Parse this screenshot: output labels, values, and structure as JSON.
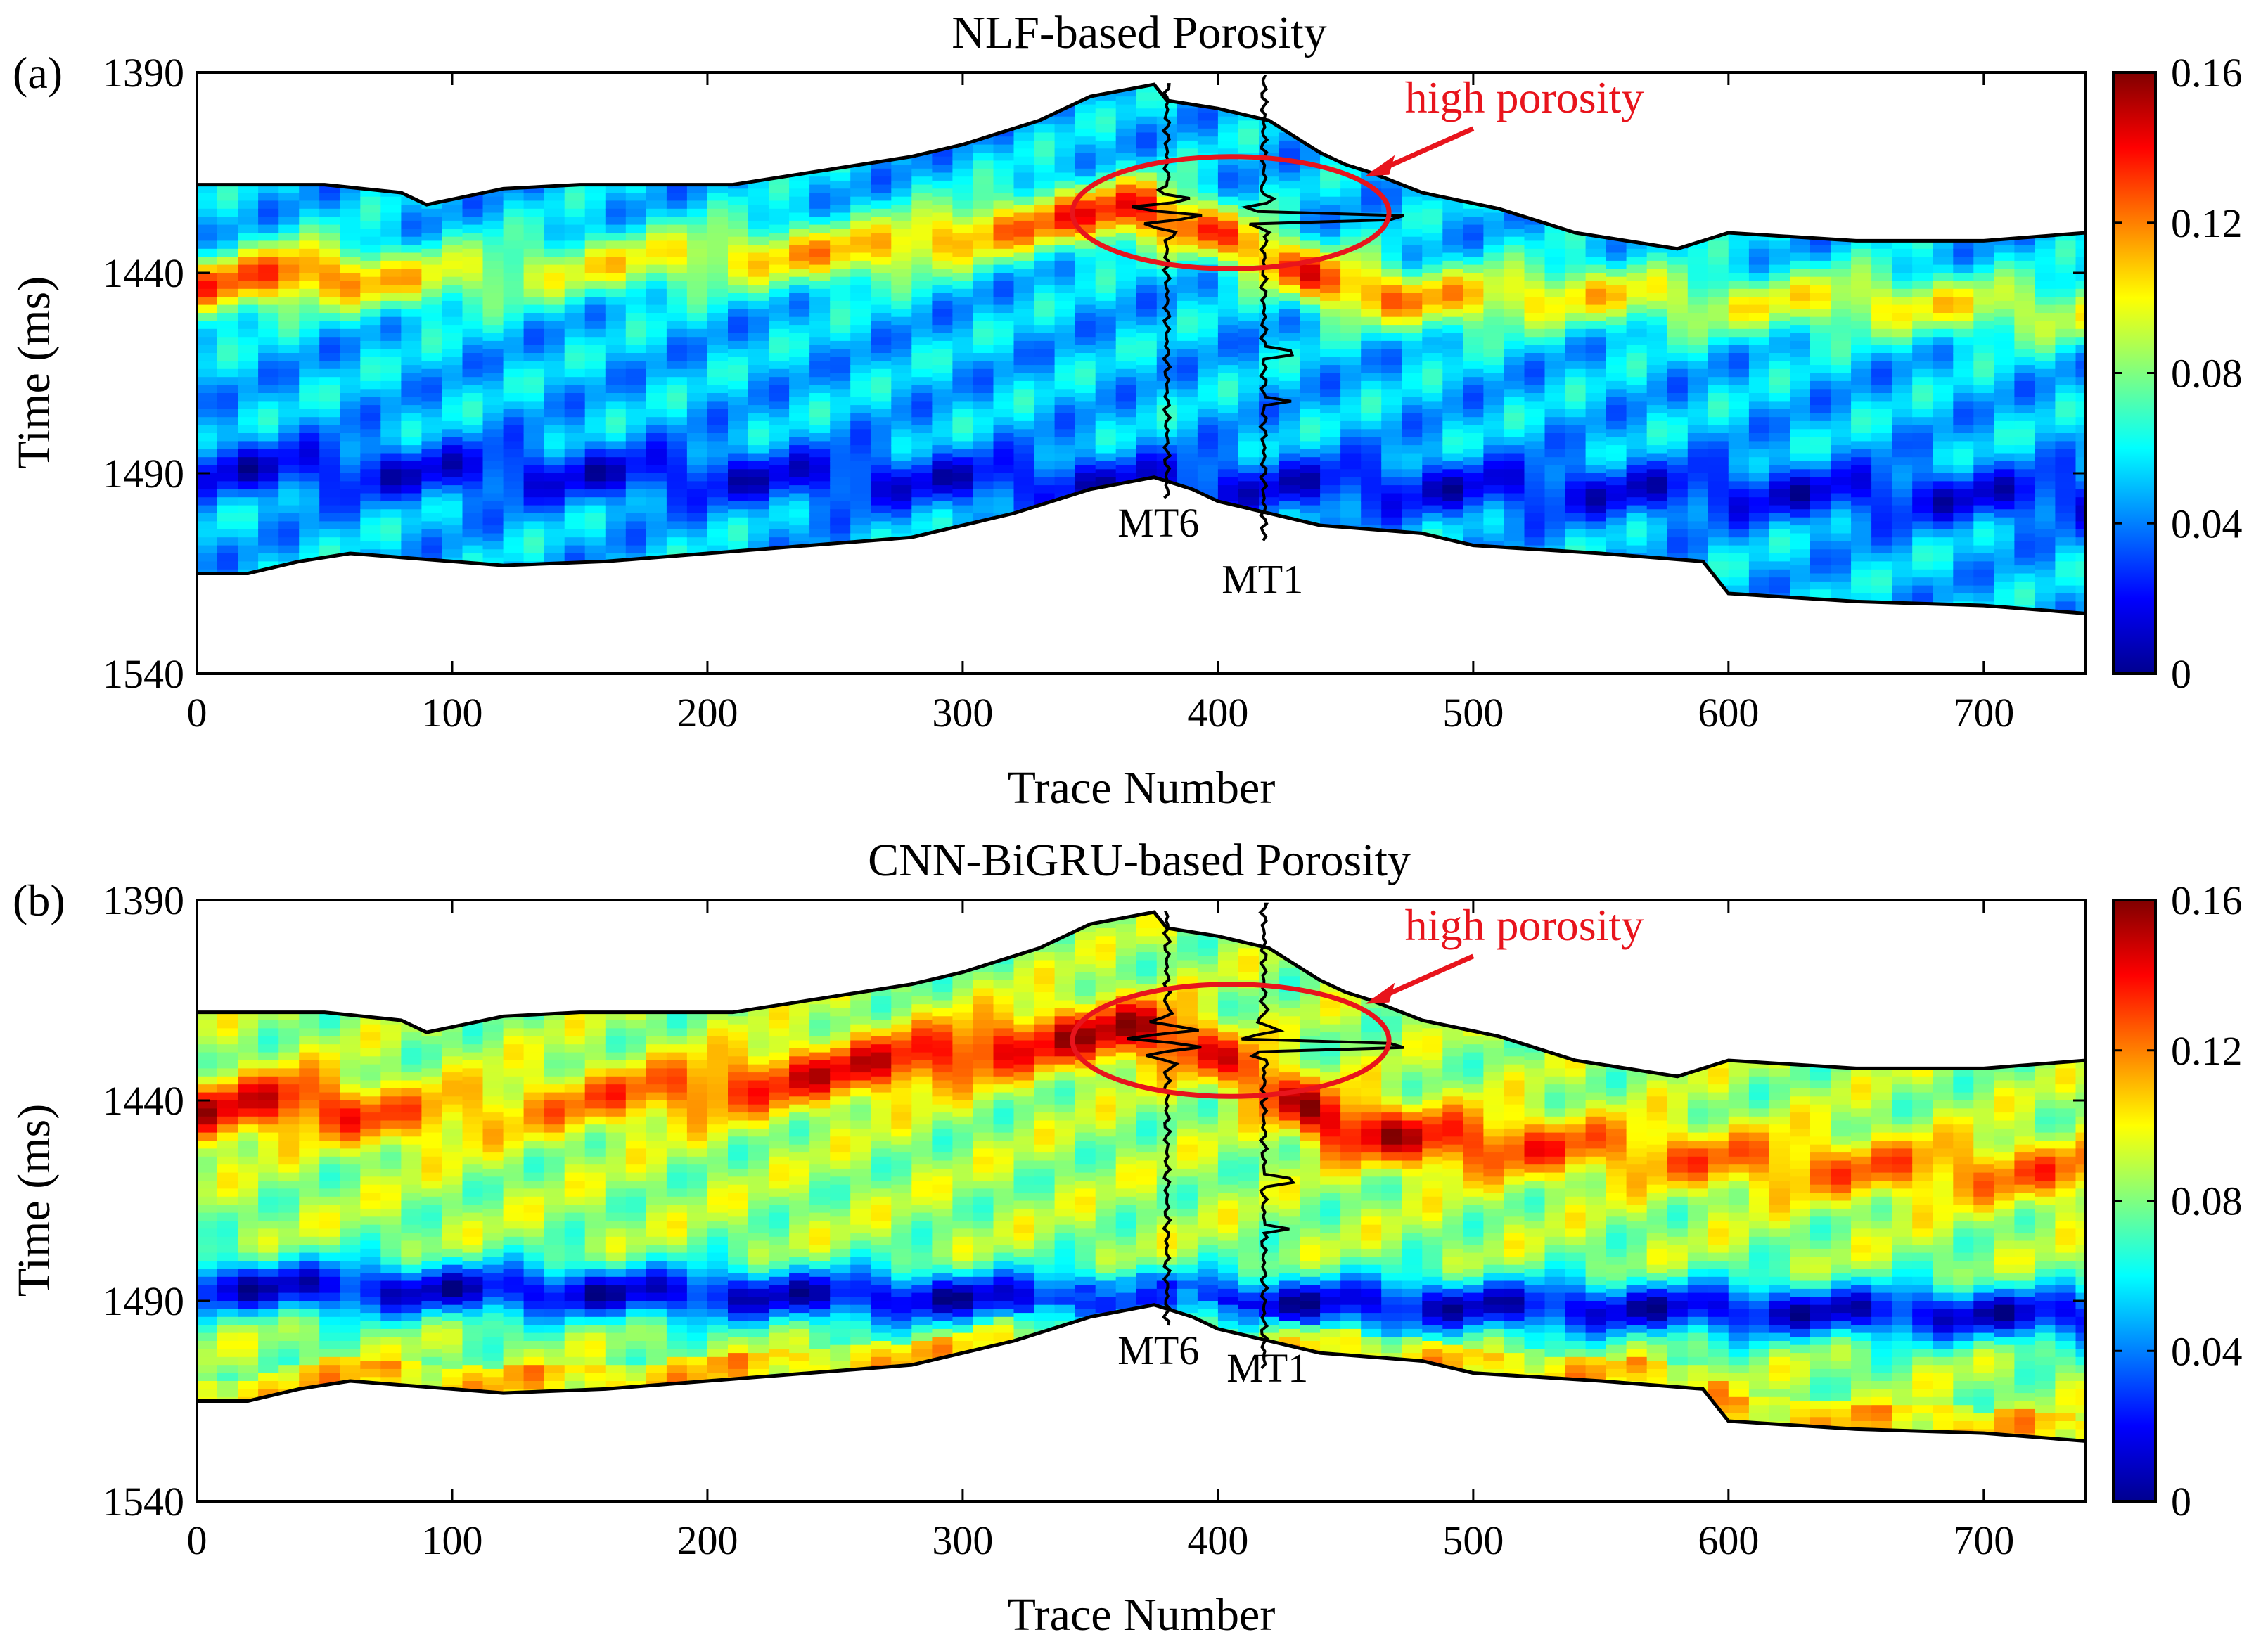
{
  "chart_data": [
    {
      "type": "heatmap",
      "panel_label": "(a)",
      "title": "NLF-based Porosity",
      "xlabel": "Trace Number",
      "ylabel": "Time (ms)",
      "xlim": [
        0,
        740
      ],
      "ylim": [
        1390,
        1540
      ],
      "y_reversed": true,
      "x_ticks": [
        "0",
        "100",
        "200",
        "300",
        "400",
        "500",
        "600",
        "700"
      ],
      "y_ticks": [
        "1390",
        "1440",
        "1490",
        "1540"
      ],
      "colorbar": {
        "min": 0,
        "max": 0.16,
        "ticks": [
          "0",
          "0.04",
          "0.08",
          "0.12",
          "0.16"
        ],
        "colormap": "jet"
      },
      "horizon_top": {
        "x": [
          0,
          10,
          50,
          80,
          90,
          120,
          150,
          210,
          230,
          260,
          280,
          300,
          330,
          350,
          375,
          380,
          390,
          400,
          420,
          430,
          440,
          450,
          460,
          480,
          510,
          540,
          580,
          600,
          650,
          700,
          740
        ],
        "t": [
          1418,
          1418,
          1418,
          1420,
          1423,
          1419,
          1418,
          1418,
          1416,
          1413,
          1411,
          1408,
          1402,
          1396,
          1393,
          1397,
          1398,
          1399,
          1402,
          1406,
          1410,
          1413,
          1415,
          1420,
          1424,
          1430,
          1434,
          1430,
          1432,
          1432,
          1430
        ]
      },
      "horizon_bottom": {
        "x": [
          0,
          20,
          40,
          60,
          80,
          120,
          160,
          200,
          240,
          280,
          320,
          350,
          375,
          390,
          400,
          420,
          440,
          480,
          500,
          550,
          590,
          600,
          650,
          700,
          740
        ],
        "t": [
          1515,
          1515,
          1512,
          1510,
          1511,
          1513,
          1512,
          1510,
          1508,
          1506,
          1500,
          1494,
          1491,
          1494,
          1497,
          1500,
          1503,
          1505,
          1508,
          1510,
          1512,
          1520,
          1522,
          1523,
          1525
        ]
      },
      "high_porosity_band": [
        {
          "t": [
            1444,
            1440,
            1442,
            1440,
            1436,
            1435,
            1427,
            1424,
            1430,
            1442,
            1447,
            1445,
            1448,
            1447,
            1450
          ],
          "x": [
            0,
            40,
            80,
            120,
            200,
            260,
            330,
            370,
            400,
            440,
            480,
            550,
            600,
            650,
            740
          ],
          "value": [
            0.12,
            0.13,
            0.1,
            0.09,
            0.1,
            0.11,
            0.12,
            0.14,
            0.12,
            0.13,
            0.11,
            0.1,
            0.09,
            0.1,
            0.09
          ]
        }
      ],
      "low_porosity_zone": {
        "t_range": [
          1480,
          1505
        ],
        "value": 0.02
      },
      "wells": [
        {
          "name": "MT6",
          "trace": 380
        },
        {
          "name": "MT1",
          "trace": 418
        }
      ],
      "annotation": {
        "text": "high porosity",
        "ellipse_center": [
          405,
          1425
        ],
        "ellipse_semi_axes": [
          62,
          14
        ]
      }
    },
    {
      "type": "heatmap",
      "panel_label": "(b)",
      "title": "CNN-BiGRU-based Porosity",
      "xlabel": "Trace Number",
      "ylabel": "Time (ms)",
      "xlim": [
        0,
        740
      ],
      "ylim": [
        1390,
        1540
      ],
      "y_reversed": true,
      "x_ticks": [
        "0",
        "100",
        "200",
        "300",
        "400",
        "500",
        "600",
        "700"
      ],
      "y_ticks": [
        "1390",
        "1440",
        "1490",
        "1540"
      ],
      "colorbar": {
        "min": 0,
        "max": 0.16,
        "ticks": [
          "0",
          "0.04",
          "0.08",
          "0.12",
          "0.16"
        ],
        "colormap": "jet"
      },
      "high_porosity_band": [
        {
          "t": [
            1443,
            1440,
            1445,
            1442,
            1437,
            1432,
            1425,
            1422,
            1428,
            1445,
            1450,
            1452,
            1455,
            1457,
            1458
          ],
          "x": [
            0,
            40,
            80,
            120,
            200,
            260,
            330,
            370,
            400,
            440,
            480,
            550,
            600,
            650,
            740
          ],
          "value": [
            0.14,
            0.14,
            0.12,
            0.11,
            0.13,
            0.14,
            0.14,
            0.15,
            0.13,
            0.15,
            0.14,
            0.12,
            0.12,
            0.12,
            0.12
          ]
        }
      ],
      "low_porosity_zone": {
        "t_range": [
          1475,
          1505
        ],
        "value": 0.02
      },
      "wells": [
        {
          "name": "MT6",
          "trace": 380
        },
        {
          "name": "MT1",
          "trace": 418
        }
      ],
      "annotation": {
        "text": "high porosity",
        "ellipse_center": [
          405,
          1425
        ],
        "ellipse_semi_axes": [
          62,
          14
        ]
      }
    }
  ]
}
